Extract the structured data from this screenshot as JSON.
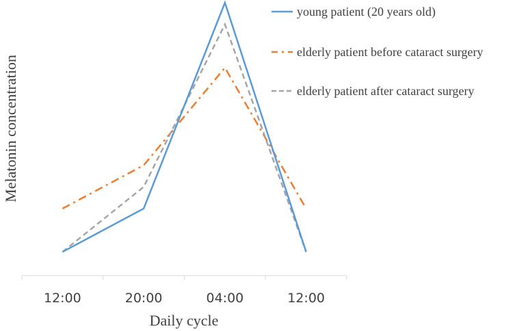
{
  "chart_data": {
    "type": "line",
    "title": "",
    "xlabel": "Daily cycle",
    "ylabel": "Melatonin concentration",
    "categories": [
      "12:00",
      "20:00",
      "04:00",
      "12:00"
    ],
    "ylim": [
      0,
      100
    ],
    "grid": false,
    "legend_position": "top-right",
    "series": [
      {
        "name": "young patient (20 years old)",
        "values": [
          8,
          24,
          100,
          8
        ],
        "color": "#5b9bd5",
        "dash": "solid"
      },
      {
        "name": "elderly patient before cataract surgery",
        "values": [
          24,
          40,
          76,
          24
        ],
        "color": "#ed7d31",
        "dash": "dash-dot"
      },
      {
        "name": "elderly patient after cataract surgery",
        "values": [
          8,
          32,
          92,
          8
        ],
        "color": "#a5a5a5",
        "dash": "dashed"
      }
    ]
  }
}
